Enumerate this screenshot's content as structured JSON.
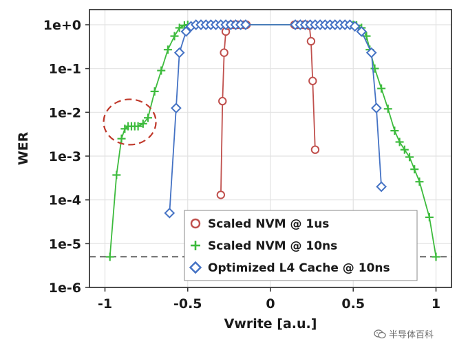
{
  "chart_data": {
    "type": "scatter",
    "xlabel": "Vwrite [a.u.]",
    "ylabel": "WER",
    "xlim": [
      -1.1,
      1.1
    ],
    "ylim_log10": [
      -6,
      0.35
    ],
    "x_ticks": [
      -1,
      -0.5,
      0,
      0.5,
      1
    ],
    "x_tick_labels": [
      "-1",
      "-0.5",
      "0",
      "0.5",
      "1"
    ],
    "y_ticks_log10": [
      0,
      -1,
      -2,
      -3,
      -4,
      -5,
      -6
    ],
    "y_tick_labels": [
      "1e+0",
      "1e-1",
      "1e-2",
      "1e-3",
      "1e-4",
      "1e-5",
      "1e-6"
    ],
    "grid": true,
    "legend_position": "bottom-center",
    "threshold_line": {
      "y": 5e-06,
      "style": "dashed"
    },
    "annotation": {
      "type": "dashed-ellipse",
      "color": "#c0392b",
      "center": [
        -0.85,
        0.006
      ]
    },
    "series": [
      {
        "name": "Scaled NVM @ 1us",
        "marker": "circle",
        "color": "#c0504d",
        "segments": [
          [
            {
              "x": -0.3,
              "y": 0.00013
            },
            {
              "x": -0.29,
              "y": 0.018
            },
            {
              "x": -0.28,
              "y": 0.23
            },
            {
              "x": -0.27,
              "y": 0.7
            },
            {
              "x": -0.26,
              "y": 0.95
            },
            {
              "x": -0.24,
              "y": 1
            },
            {
              "x": -0.22,
              "y": 1
            },
            {
              "x": -0.2,
              "y": 1
            },
            {
              "x": -0.18,
              "y": 1
            },
            {
              "x": -0.16,
              "y": 1
            },
            {
              "x": -0.145,
              "y": 1
            }
          ],
          [
            {
              "x": 0.145,
              "y": 1
            },
            {
              "x": 0.16,
              "y": 1
            },
            {
              "x": 0.18,
              "y": 1
            },
            {
              "x": 0.2,
              "y": 1
            },
            {
              "x": 0.22,
              "y": 1
            },
            {
              "x": 0.235,
              "y": 0.95
            },
            {
              "x": 0.245,
              "y": 0.42
            },
            {
              "x": 0.255,
              "y": 0.052
            },
            {
              "x": 0.27,
              "y": 0.0014
            }
          ]
        ]
      },
      {
        "name": "Scaled NVM @ 10ns",
        "marker": "plus",
        "color": "#3dbb3d",
        "segments": [
          [
            {
              "x": -0.97,
              "y": 5e-06
            },
            {
              "x": -0.93,
              "y": 0.00037
            },
            {
              "x": -0.9,
              "y": 0.0025
            },
            {
              "x": -0.88,
              "y": 0.0042
            },
            {
              "x": -0.86,
              "y": 0.0048
            },
            {
              "x": -0.84,
              "y": 0.0048
            },
            {
              "x": -0.82,
              "y": 0.0048
            },
            {
              "x": -0.8,
              "y": 0.0048
            },
            {
              "x": -0.77,
              "y": 0.0055
            },
            {
              "x": -0.74,
              "y": 0.0075
            },
            {
              "x": -0.7,
              "y": 0.03
            },
            {
              "x": -0.66,
              "y": 0.09
            },
            {
              "x": -0.62,
              "y": 0.27
            },
            {
              "x": -0.58,
              "y": 0.55
            },
            {
              "x": -0.55,
              "y": 0.85
            },
            {
              "x": -0.52,
              "y": 0.97
            },
            {
              "x": -0.5,
              "y": 1
            },
            {
              "x": 0.5,
              "y": 1
            },
            {
              "x": 0.52,
              "y": 0.97
            },
            {
              "x": 0.55,
              "y": 0.85
            },
            {
              "x": 0.58,
              "y": 0.55
            },
            {
              "x": 0.6,
              "y": 0.27
            },
            {
              "x": 0.63,
              "y": 0.1
            },
            {
              "x": 0.67,
              "y": 0.035
            },
            {
              "x": 0.71,
              "y": 0.012
            },
            {
              "x": 0.75,
              "y": 0.0038
            },
            {
              "x": 0.78,
              "y": 0.0021
            },
            {
              "x": 0.81,
              "y": 0.0014
            },
            {
              "x": 0.84,
              "y": 0.00095
            },
            {
              "x": 0.87,
              "y": 0.0005
            },
            {
              "x": 0.9,
              "y": 0.00026
            },
            {
              "x": 0.96,
              "y": 4e-05
            },
            {
              "x": 1.0,
              "y": 5e-06
            }
          ]
        ]
      },
      {
        "name": "Optimized L4 Cache @ 10ns",
        "marker": "diamond",
        "color": "#4472c4",
        "segments": [
          [
            {
              "x": -0.61,
              "y": 5e-05
            },
            {
              "x": -0.57,
              "y": 0.0125
            },
            {
              "x": -0.55,
              "y": 0.23
            },
            {
              "x": -0.51,
              "y": 0.7
            },
            {
              "x": -0.48,
              "y": 0.92
            },
            {
              "x": -0.45,
              "y": 1
            },
            {
              "x": -0.42,
              "y": 1
            },
            {
              "x": -0.39,
              "y": 1
            },
            {
              "x": -0.36,
              "y": 1
            },
            {
              "x": -0.33,
              "y": 1
            },
            {
              "x": -0.3,
              "y": 1
            },
            {
              "x": -0.27,
              "y": 1
            },
            {
              "x": -0.24,
              "y": 1
            },
            {
              "x": -0.21,
              "y": 1
            },
            {
              "x": -0.18,
              "y": 1
            },
            {
              "x": -0.15,
              "y": 1
            },
            {
              "x": 0.15,
              "y": 1
            },
            {
              "x": 0.18,
              "y": 1
            },
            {
              "x": 0.21,
              "y": 1
            },
            {
              "x": 0.24,
              "y": 1
            },
            {
              "x": 0.27,
              "y": 1
            },
            {
              "x": 0.3,
              "y": 1
            },
            {
              "x": 0.33,
              "y": 1
            },
            {
              "x": 0.36,
              "y": 1
            },
            {
              "x": 0.39,
              "y": 1
            },
            {
              "x": 0.42,
              "y": 1
            },
            {
              "x": 0.45,
              "y": 1
            },
            {
              "x": 0.48,
              "y": 1
            },
            {
              "x": 0.51,
              "y": 0.92
            },
            {
              "x": 0.55,
              "y": 0.7
            },
            {
              "x": 0.61,
              "y": 0.23
            },
            {
              "x": 0.64,
              "y": 0.0125
            },
            {
              "x": 0.67,
              "y": 0.0002
            }
          ]
        ]
      }
    ]
  },
  "watermark": {
    "text": "半导体百科",
    "icon": "wechat-icon"
  }
}
